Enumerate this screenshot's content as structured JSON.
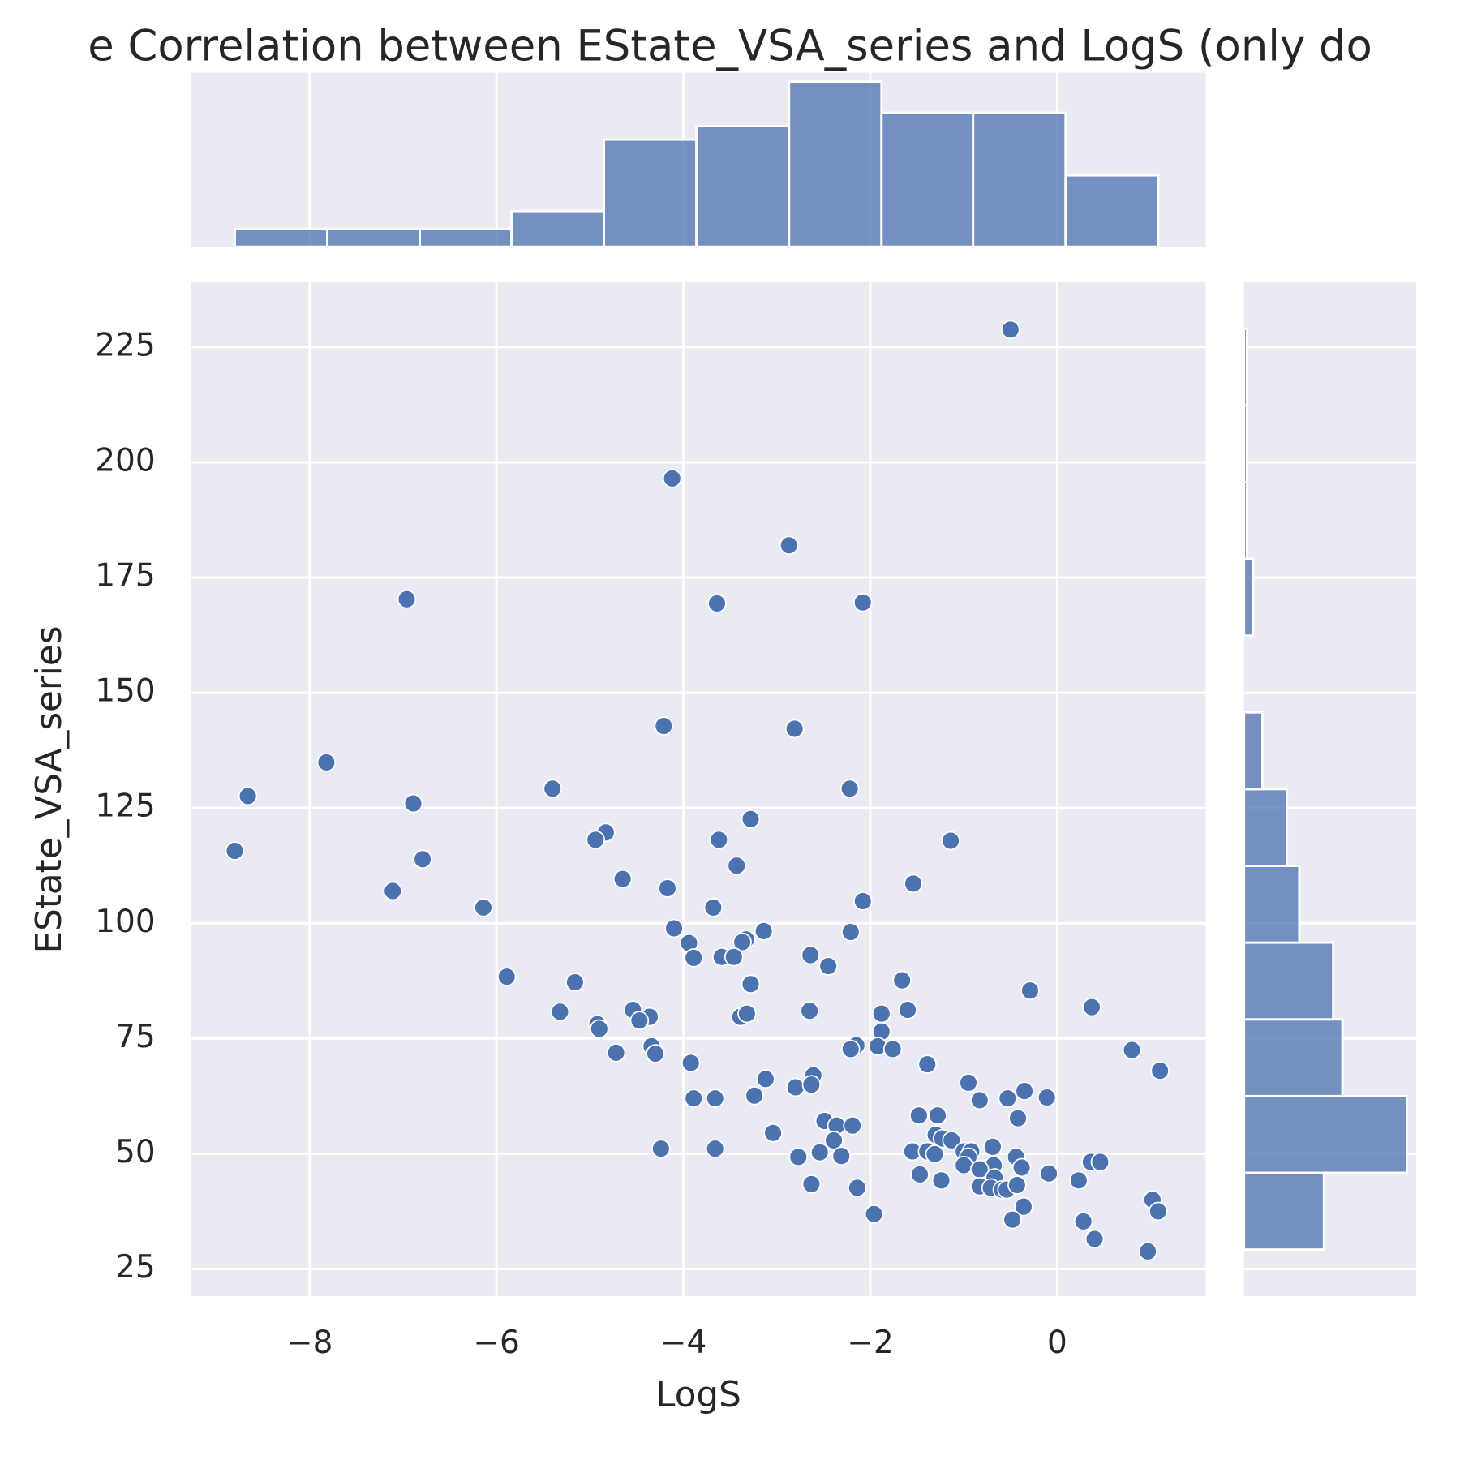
{
  "chart_data": [
    {
      "type": "scatter",
      "title": "e Correlation between EState_VSA_series and LogS (only do",
      "x_label": "LogS",
      "y_label": "EState_VSA_series",
      "color": "#4c72b0",
      "x": [
        -0.5,
        -4.12,
        -2.87,
        -6.96,
        -3.64,
        -2.08,
        -4.21,
        -2.81,
        -7.82,
        -8.66,
        -5.4,
        -2.22,
        -6.89,
        -3.28,
        -4.83,
        -4.94,
        -3.62,
        -1.14,
        -8.8,
        -6.79,
        -3.43,
        -4.65,
        -1.54,
        -4.17,
        -7.11,
        -2.08,
        -6.14,
        -3.68,
        -4.1,
        -3.14,
        -2.21,
        -3.94,
        -3.33,
        -3.37,
        -2.64,
        -3.89,
        -3.59,
        -3.46,
        -2.45,
        -5.89,
        -5.16,
        -1.66,
        -3.28,
        -0.29,
        0.37,
        -5.32,
        -4.54,
        -2.65,
        -1.88,
        -1.6,
        -4.36,
        -4.47,
        -3.39,
        -3.32,
        -4.92,
        -4.9,
        -1.88,
        -2.15,
        -4.34,
        -1.92,
        -2.21,
        -1.76,
        0.8,
        -4.72,
        -4.3,
        -3.92,
        -1.39,
        1.1,
        -2.61,
        -3.12,
        -0.95,
        -2.8,
        -2.63,
        -0.35,
        -3.24,
        -3.89,
        -3.66,
        -0.53,
        -0.11,
        -0.83,
        -1.48,
        -1.28,
        -0.42,
        -2.49,
        -2.36,
        -2.19,
        -3.04,
        -1.3,
        -1.23,
        -1.13,
        -2.39,
        -0.69,
        -4.24,
        -3.66,
        -1.55,
        -1.39,
        -2.54,
        -1.0,
        -0.92,
        -1.31,
        -2.77,
        -2.31,
        -0.95,
        -0.44,
        -1.0,
        -0.68,
        -0.38,
        -0.83,
        0.36,
        0.46,
        -1.47,
        -0.09,
        -0.67,
        -1.24,
        -2.63,
        0.23,
        -0.83,
        -0.71,
        -0.59,
        -0.54,
        -0.43,
        -2.14,
        1.02,
        -0.36,
        1.08,
        -1.96,
        -0.48,
        0.28,
        0.4,
        0.97
      ],
      "values": [
        228.8,
        196.5,
        182.0,
        170.3,
        169.4,
        169.6,
        142.8,
        142.2,
        134.9,
        127.6,
        129.2,
        129.2,
        126.0,
        122.6,
        119.7,
        118.1,
        118.1,
        117.9,
        115.7,
        113.9,
        112.5,
        109.6,
        108.6,
        107.6,
        107.0,
        104.8,
        103.4,
        103.4,
        98.9,
        98.3,
        98.1,
        95.7,
        96.5,
        95.9,
        93.1,
        92.5,
        92.7,
        92.7,
        90.7,
        88.4,
        87.2,
        87.6,
        86.8,
        85.4,
        81.8,
        80.8,
        81.2,
        81.0,
        80.4,
        81.2,
        79.7,
        78.9,
        79.7,
        80.4,
        78.1,
        77.1,
        76.5,
        73.5,
        73.3,
        73.3,
        72.7,
        72.7,
        72.5,
        71.9,
        71.7,
        69.7,
        69.4,
        68.0,
        67.0,
        66.2,
        65.4,
        64.4,
        65.0,
        63.6,
        62.6,
        62.0,
        62.0,
        62.0,
        62.2,
        61.6,
        58.3,
        58.3,
        57.7,
        57.1,
        56.1,
        56.1,
        54.5,
        54.1,
        53.3,
        52.9,
        52.9,
        51.5,
        51.1,
        51.1,
        50.5,
        50.5,
        50.3,
        50.5,
        50.5,
        49.9,
        49.3,
        49.5,
        49.3,
        49.3,
        47.5,
        47.5,
        47.0,
        46.6,
        48.2,
        48.2,
        45.5,
        45.7,
        44.8,
        44.2,
        43.4,
        44.2,
        42.9,
        42.6,
        42.2,
        42.2,
        43.2,
        42.6,
        40.0,
        38.5,
        37.5,
        36.9,
        35.7,
        35.3,
        31.5,
        28.8
      ],
      "xlim": [
        -9.27,
        1.59
      ],
      "xticks": [
        {
          "value": -8,
          "label": "−8"
        },
        {
          "value": -6,
          "label": "−6"
        },
        {
          "value": -4,
          "label": "−4"
        },
        {
          "value": -2,
          "label": "−2"
        },
        0
      ],
      "ylim": [
        19.1,
        239.1
      ],
      "yticks": [
        25,
        50,
        75,
        100,
        125,
        150,
        175,
        200,
        225
      ],
      "grid": true
    },
    {
      "type": "histogram",
      "orientation": "vertical",
      "color": "#4c72b0",
      "bins": [
        -8.8,
        -7.81,
        -6.82,
        -5.84,
        -4.85,
        -3.86,
        -2.87,
        -1.88,
        -0.9,
        0.09,
        1.08
      ],
      "values": [
        4,
        4,
        4,
        8,
        24,
        27,
        37,
        30,
        30,
        16
      ],
      "ylim": [
        0,
        39
      ]
    },
    {
      "type": "histogram",
      "orientation": "horizontal",
      "color": "#4c72b0",
      "bins": [
        29.2,
        45.85,
        62.5,
        79.15,
        95.8,
        112.45,
        129.1,
        145.75,
        162.4,
        179.05,
        195.7,
        212.35,
        229.0
      ],
      "values": [
        26,
        53,
        32,
        29,
        18,
        14,
        6,
        0,
        3,
        1,
        1,
        1
      ],
      "xlim": [
        0,
        56
      ]
    }
  ]
}
